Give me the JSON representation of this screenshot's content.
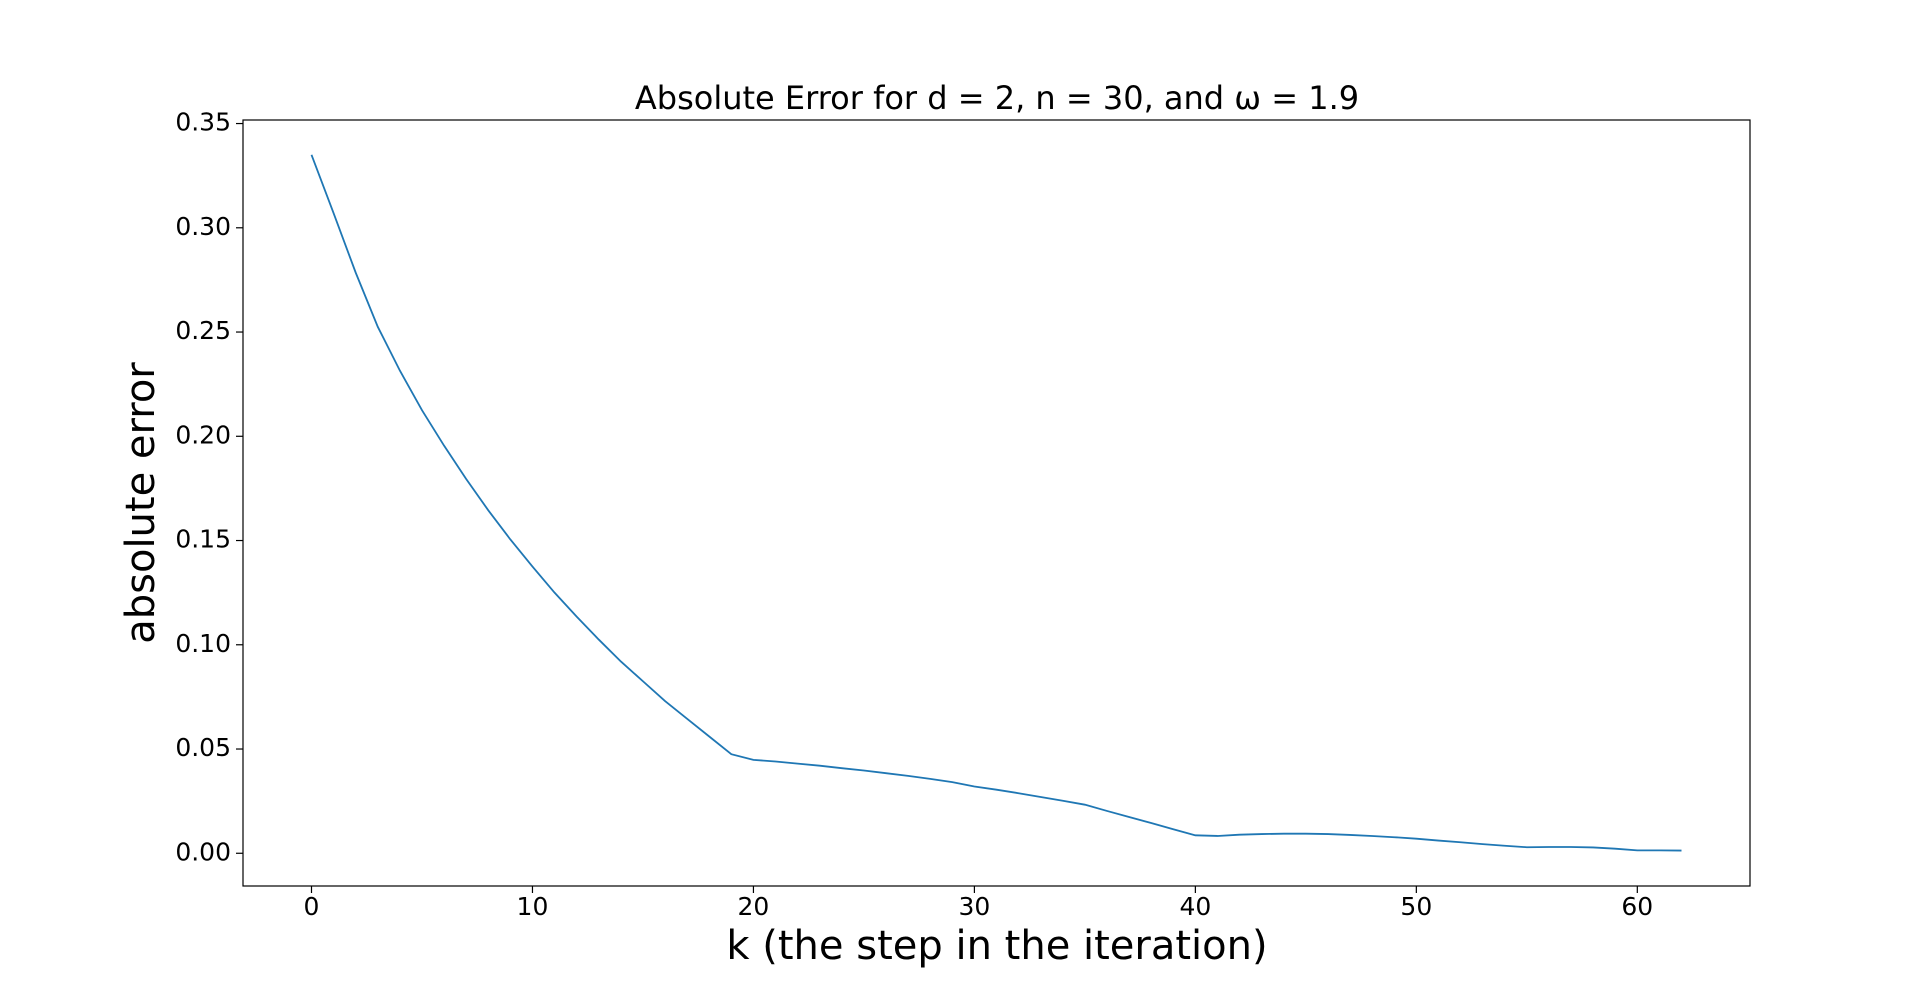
{
  "chart_data": {
    "type": "line",
    "title": "Absolute Error for d = 2, n = 30, and ω = 1.9",
    "x_label": "k (the step in the iteration)",
    "y_label": "absolute error",
    "x": [
      0,
      1,
      2,
      3,
      4,
      5,
      6,
      7,
      8,
      9,
      10,
      11,
      12,
      13,
      14,
      15,
      16,
      17,
      18,
      19,
      20,
      21,
      22,
      23,
      24,
      25,
      26,
      27,
      28,
      29,
      30,
      31,
      32,
      33,
      34,
      35,
      36,
      37,
      38,
      39,
      40,
      41,
      42,
      43,
      44,
      45,
      46,
      47,
      48,
      49,
      50,
      51,
      52,
      53,
      54,
      55,
      56,
      57,
      58,
      59,
      60,
      61,
      62
    ],
    "series": [
      {
        "name": "absolute error",
        "color": "#1f77b4",
        "values": [
          0.335,
          0.307,
          0.2785,
          0.2525,
          0.2315,
          0.2125,
          0.1955,
          0.1795,
          0.1645,
          0.1505,
          0.1375,
          0.125,
          0.1135,
          0.1025,
          0.092,
          0.0825,
          0.073,
          0.0645,
          0.056,
          0.0475,
          0.0448,
          0.044,
          0.043,
          0.042,
          0.0408,
          0.0397,
          0.0384,
          0.0371,
          0.0357,
          0.0341,
          0.032,
          0.0305,
          0.0288,
          0.027,
          0.0252,
          0.0233,
          0.0203,
          0.0174,
          0.0145,
          0.0115,
          0.0086,
          0.0083,
          0.0089,
          0.0092,
          0.0094,
          0.0094,
          0.0092,
          0.0088,
          0.0083,
          0.0077,
          0.007,
          0.0061,
          0.0053,
          0.0044,
          0.0036,
          0.0029,
          0.003,
          0.003,
          0.0028,
          0.0022,
          0.0014,
          0.0014,
          0.0013
        ]
      }
    ],
    "xlim": [
      -3.1,
      65.1
    ],
    "ylim": [
      -0.0157,
      0.3517
    ],
    "xticks": [
      0,
      10,
      20,
      30,
      40,
      50,
      60
    ],
    "yticks": [
      {
        "value": 0,
        "label": "0.00"
      },
      {
        "value": 0.05,
        "label": "0.05"
      },
      {
        "value": 0.1,
        "label": "0.10"
      },
      {
        "value": 0.15,
        "label": "0.15"
      },
      {
        "value": 0.2,
        "label": "0.20"
      },
      {
        "value": 0.25,
        "label": "0.25"
      },
      {
        "value": 0.3,
        "label": "0.30"
      },
      {
        "value": 0.35,
        "label": "0.35"
      }
    ],
    "grid": false
  }
}
